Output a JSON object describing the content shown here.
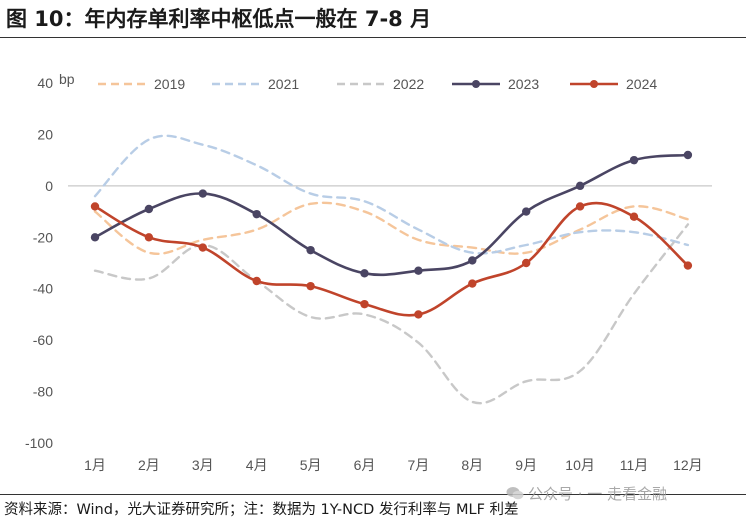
{
  "header": {
    "title": "图 10：年内存单利率中枢低点一般在 7-8 月"
  },
  "footer": {
    "source": "资料来源：Wind，光大证券研究所；注：数据为 1Y-NCD 发行利率与 MLF 利差",
    "watermark": "公众号 · 一 走看金融"
  },
  "colors": {
    "2019": "#F5C59A",
    "2021": "#B8CDE6",
    "2022": "#C8C8C8",
    "2023": "#4A4563",
    "2024": "#C0442B"
  },
  "chart_data": {
    "type": "line",
    "title": "",
    "xlabel": "",
    "ylabel": "bp",
    "ylim": [
      -100,
      40
    ],
    "yticks": [
      40,
      20,
      0,
      -20,
      -40,
      -60,
      -80,
      -100
    ],
    "categories": [
      "1月",
      "2月",
      "3月",
      "4月",
      "5月",
      "6月",
      "7月",
      "8月",
      "9月",
      "10月",
      "11月",
      "12月"
    ],
    "legend_position": "top",
    "series": [
      {
        "name": "2019",
        "style": "dashed",
        "markers": false,
        "values": [
          -10,
          -26,
          -21,
          -17,
          -7,
          -10,
          -21,
          -24,
          -26,
          -17,
          -8,
          -13
        ]
      },
      {
        "name": "2021",
        "style": "dashed",
        "markers": false,
        "values": [
          -4,
          18,
          16,
          8,
          -3,
          -6,
          -17,
          -26,
          -23,
          -18,
          -18,
          -23
        ]
      },
      {
        "name": "2022",
        "style": "dashed",
        "markers": false,
        "values": [
          -33,
          -36,
          -23,
          -37,
          -51,
          -50,
          -61,
          -84,
          -76,
          -72,
          -42,
          -15
        ]
      },
      {
        "name": "2023",
        "style": "solid",
        "markers": true,
        "values": [
          -20,
          -9,
          -3,
          -11,
          -25,
          -34,
          -33,
          -29,
          -10,
          0,
          10,
          12
        ]
      },
      {
        "name": "2024",
        "style": "solid",
        "markers": true,
        "values": [
          -8,
          -20,
          -24,
          -37,
          -39,
          -46,
          -50,
          -38,
          -30,
          -8,
          -12,
          -31
        ]
      }
    ]
  }
}
